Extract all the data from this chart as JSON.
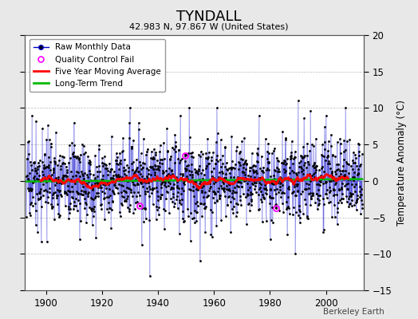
{
  "title": "TYNDALL",
  "subtitle": "42.983 N, 97.867 W (United States)",
  "ylabel": "Temperature Anomaly (°C)",
  "credit": "Berkeley Earth",
  "year_start": 1893,
  "year_end": 2013,
  "ylim": [
    -15,
    20
  ],
  "yticks": [
    -15,
    -10,
    -5,
    0,
    5,
    10,
    15,
    20
  ],
  "xticks": [
    1900,
    1920,
    1940,
    1960,
    1980,
    2000
  ],
  "raw_color": "#0000cc",
  "marker_color": "#000000",
  "ma_color": "#ff0000",
  "trend_color": "#00bb00",
  "qc_color": "#ff00ff",
  "bg_color": "#e8e8e8",
  "plot_bg": "#ffffff",
  "seed": 17
}
